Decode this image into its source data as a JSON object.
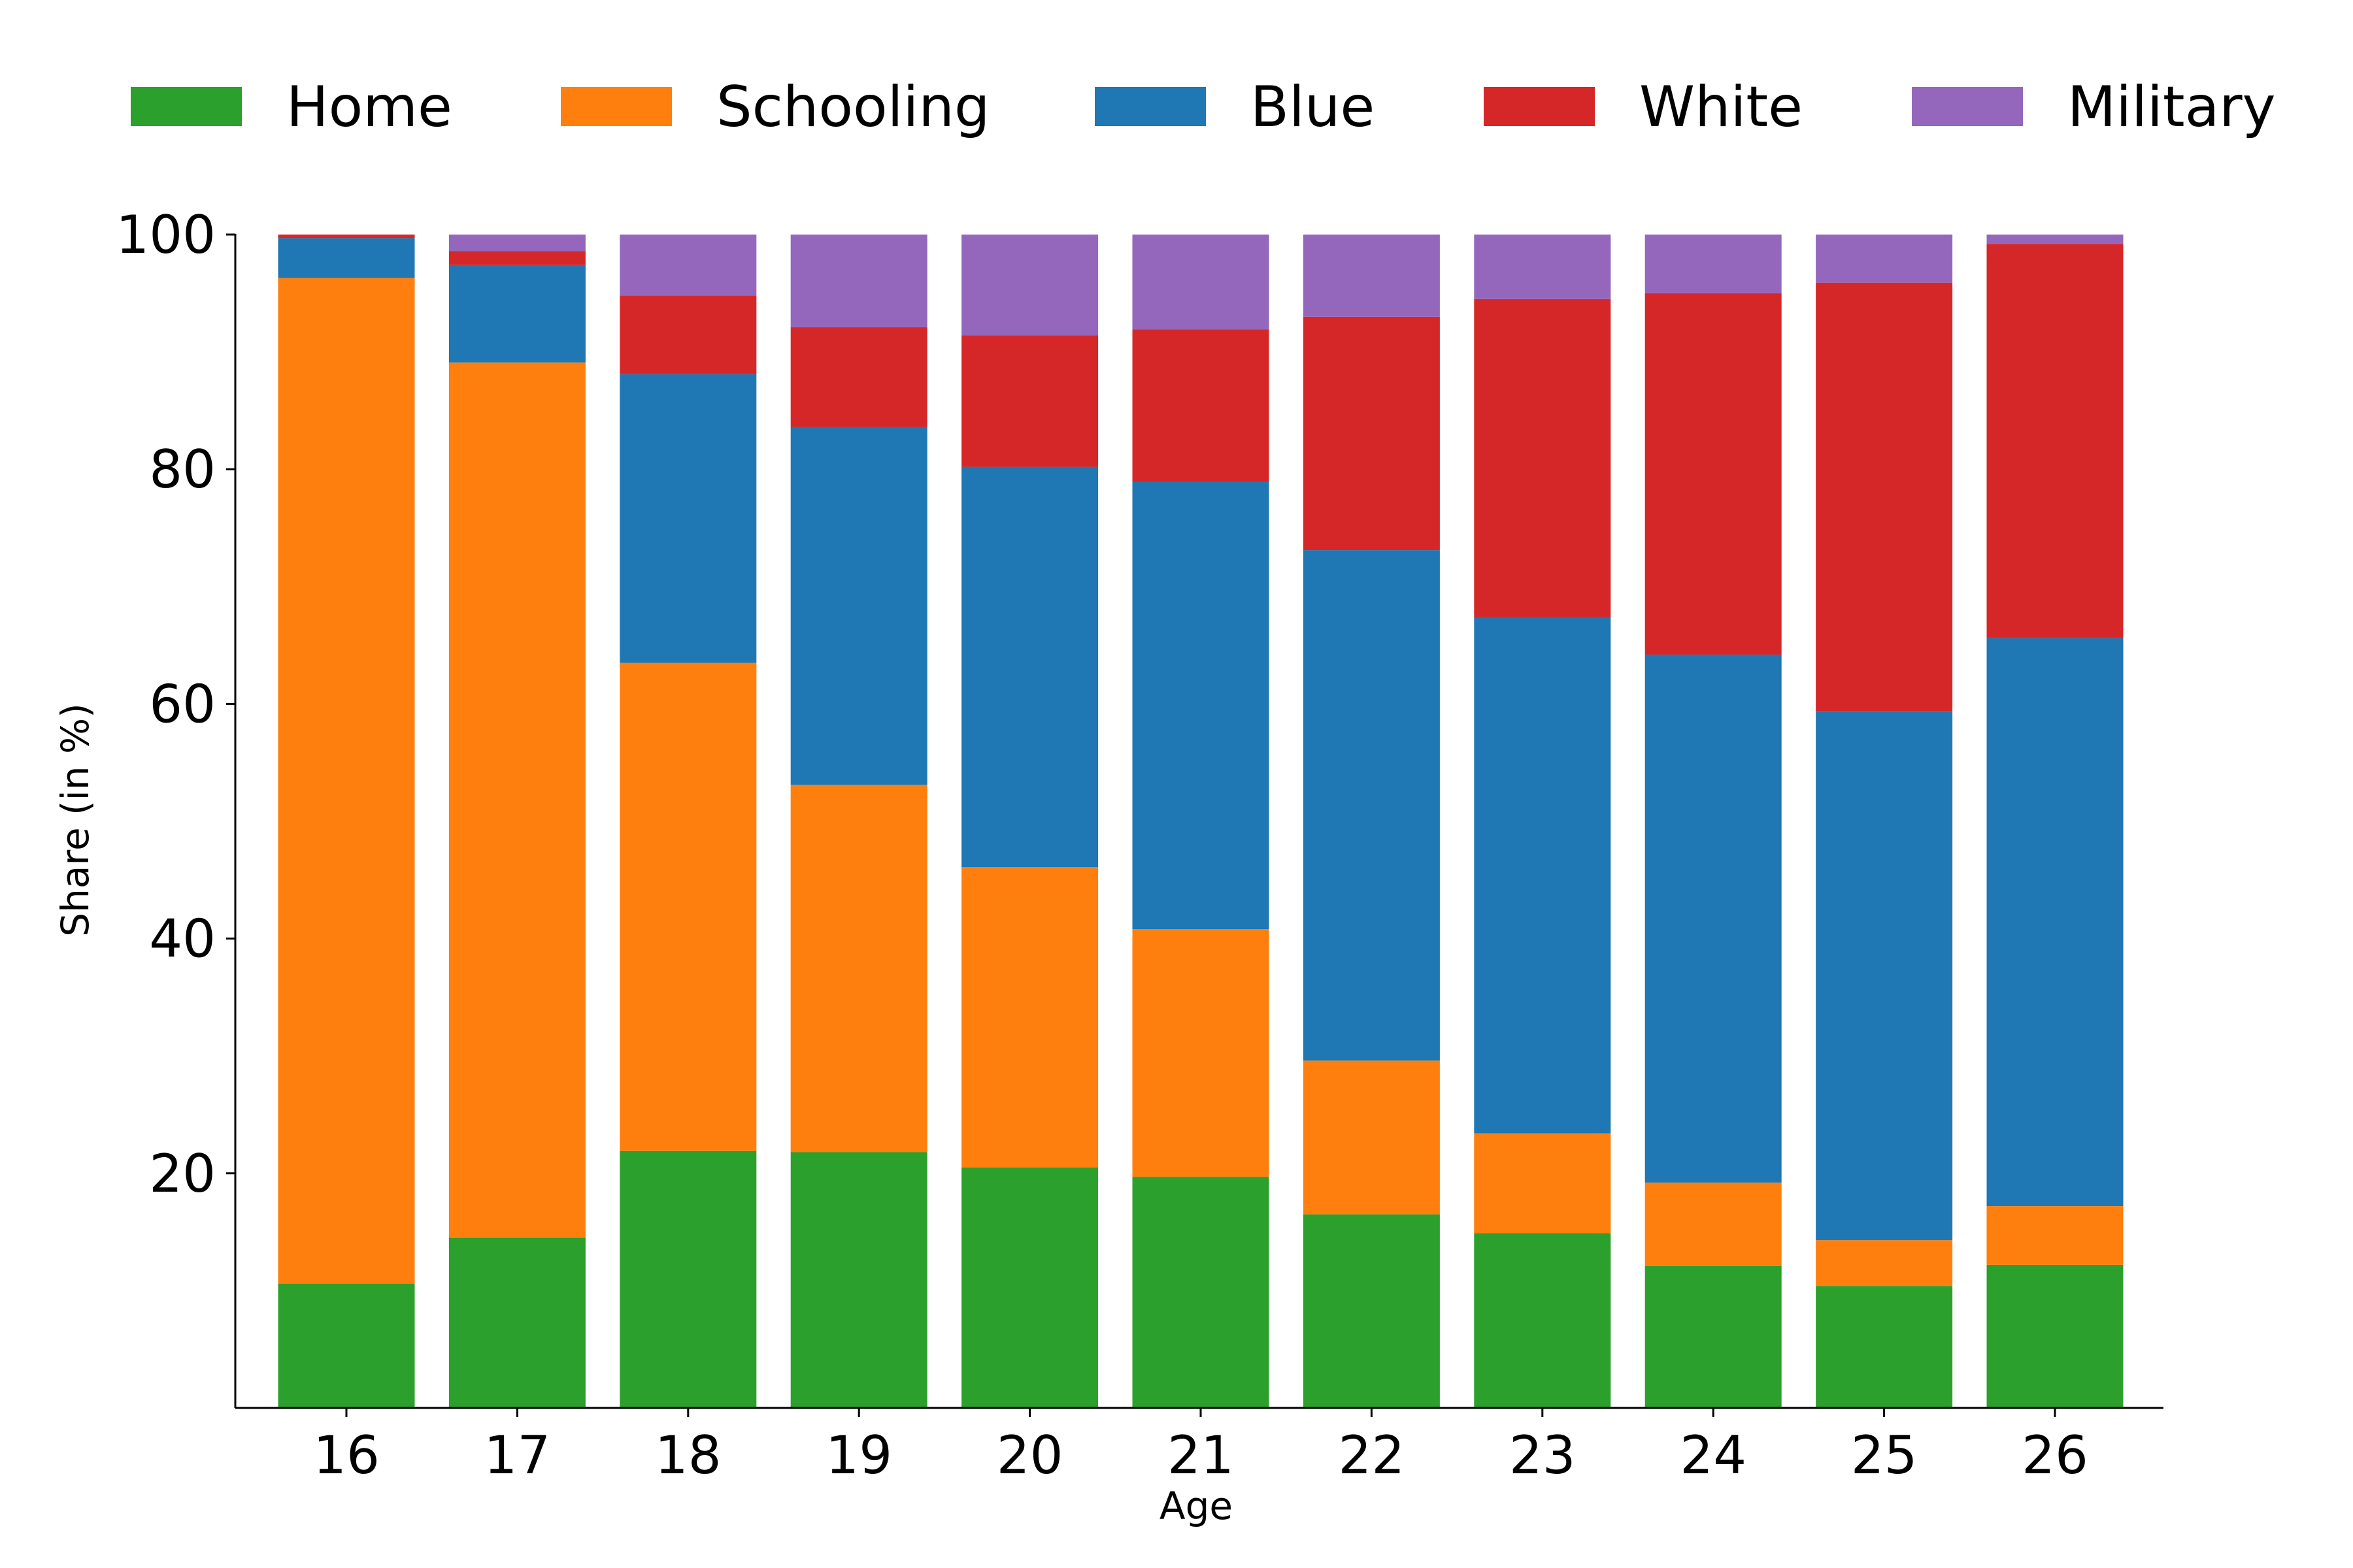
{
  "chart_data": {
    "type": "bar",
    "stacked": true,
    "xlabel": "Age",
    "ylabel": "Share (in %)",
    "ylim": [
      0,
      100
    ],
    "yticks": [
      20,
      40,
      60,
      80,
      100
    ],
    "categories": [
      "16",
      "17",
      "18",
      "19",
      "20",
      "21",
      "22",
      "23",
      "24",
      "25",
      "26"
    ],
    "legend_position": "top",
    "series": [
      {
        "name": "Home",
        "color": "#2ca02c",
        "values": [
          10.6,
          14.5,
          21.9,
          21.8,
          20.5,
          19.7,
          16.5,
          14.9,
          12.1,
          10.4,
          12.2
        ]
      },
      {
        "name": "Schooling",
        "color": "#ff7f0e",
        "values": [
          85.7,
          74.6,
          41.6,
          31.3,
          25.6,
          21.1,
          13.1,
          8.5,
          7.1,
          3.9,
          5.0
        ]
      },
      {
        "name": "Blue",
        "color": "#1f77b4",
        "values": [
          3.4,
          8.3,
          24.6,
          30.5,
          34.1,
          38.1,
          43.5,
          44.0,
          45.0,
          45.1,
          48.4
        ]
      },
      {
        "name": "White",
        "color": "#d62728",
        "values": [
          0.3,
          1.2,
          6.7,
          8.5,
          11.2,
          13.0,
          19.9,
          27.1,
          30.8,
          36.5,
          33.6
        ]
      },
      {
        "name": "Military",
        "color": "#9467bd",
        "values": [
          0.0,
          1.4,
          5.2,
          7.9,
          8.6,
          8.1,
          7.0,
          5.5,
          5.0,
          4.1,
          0.8
        ]
      }
    ]
  }
}
